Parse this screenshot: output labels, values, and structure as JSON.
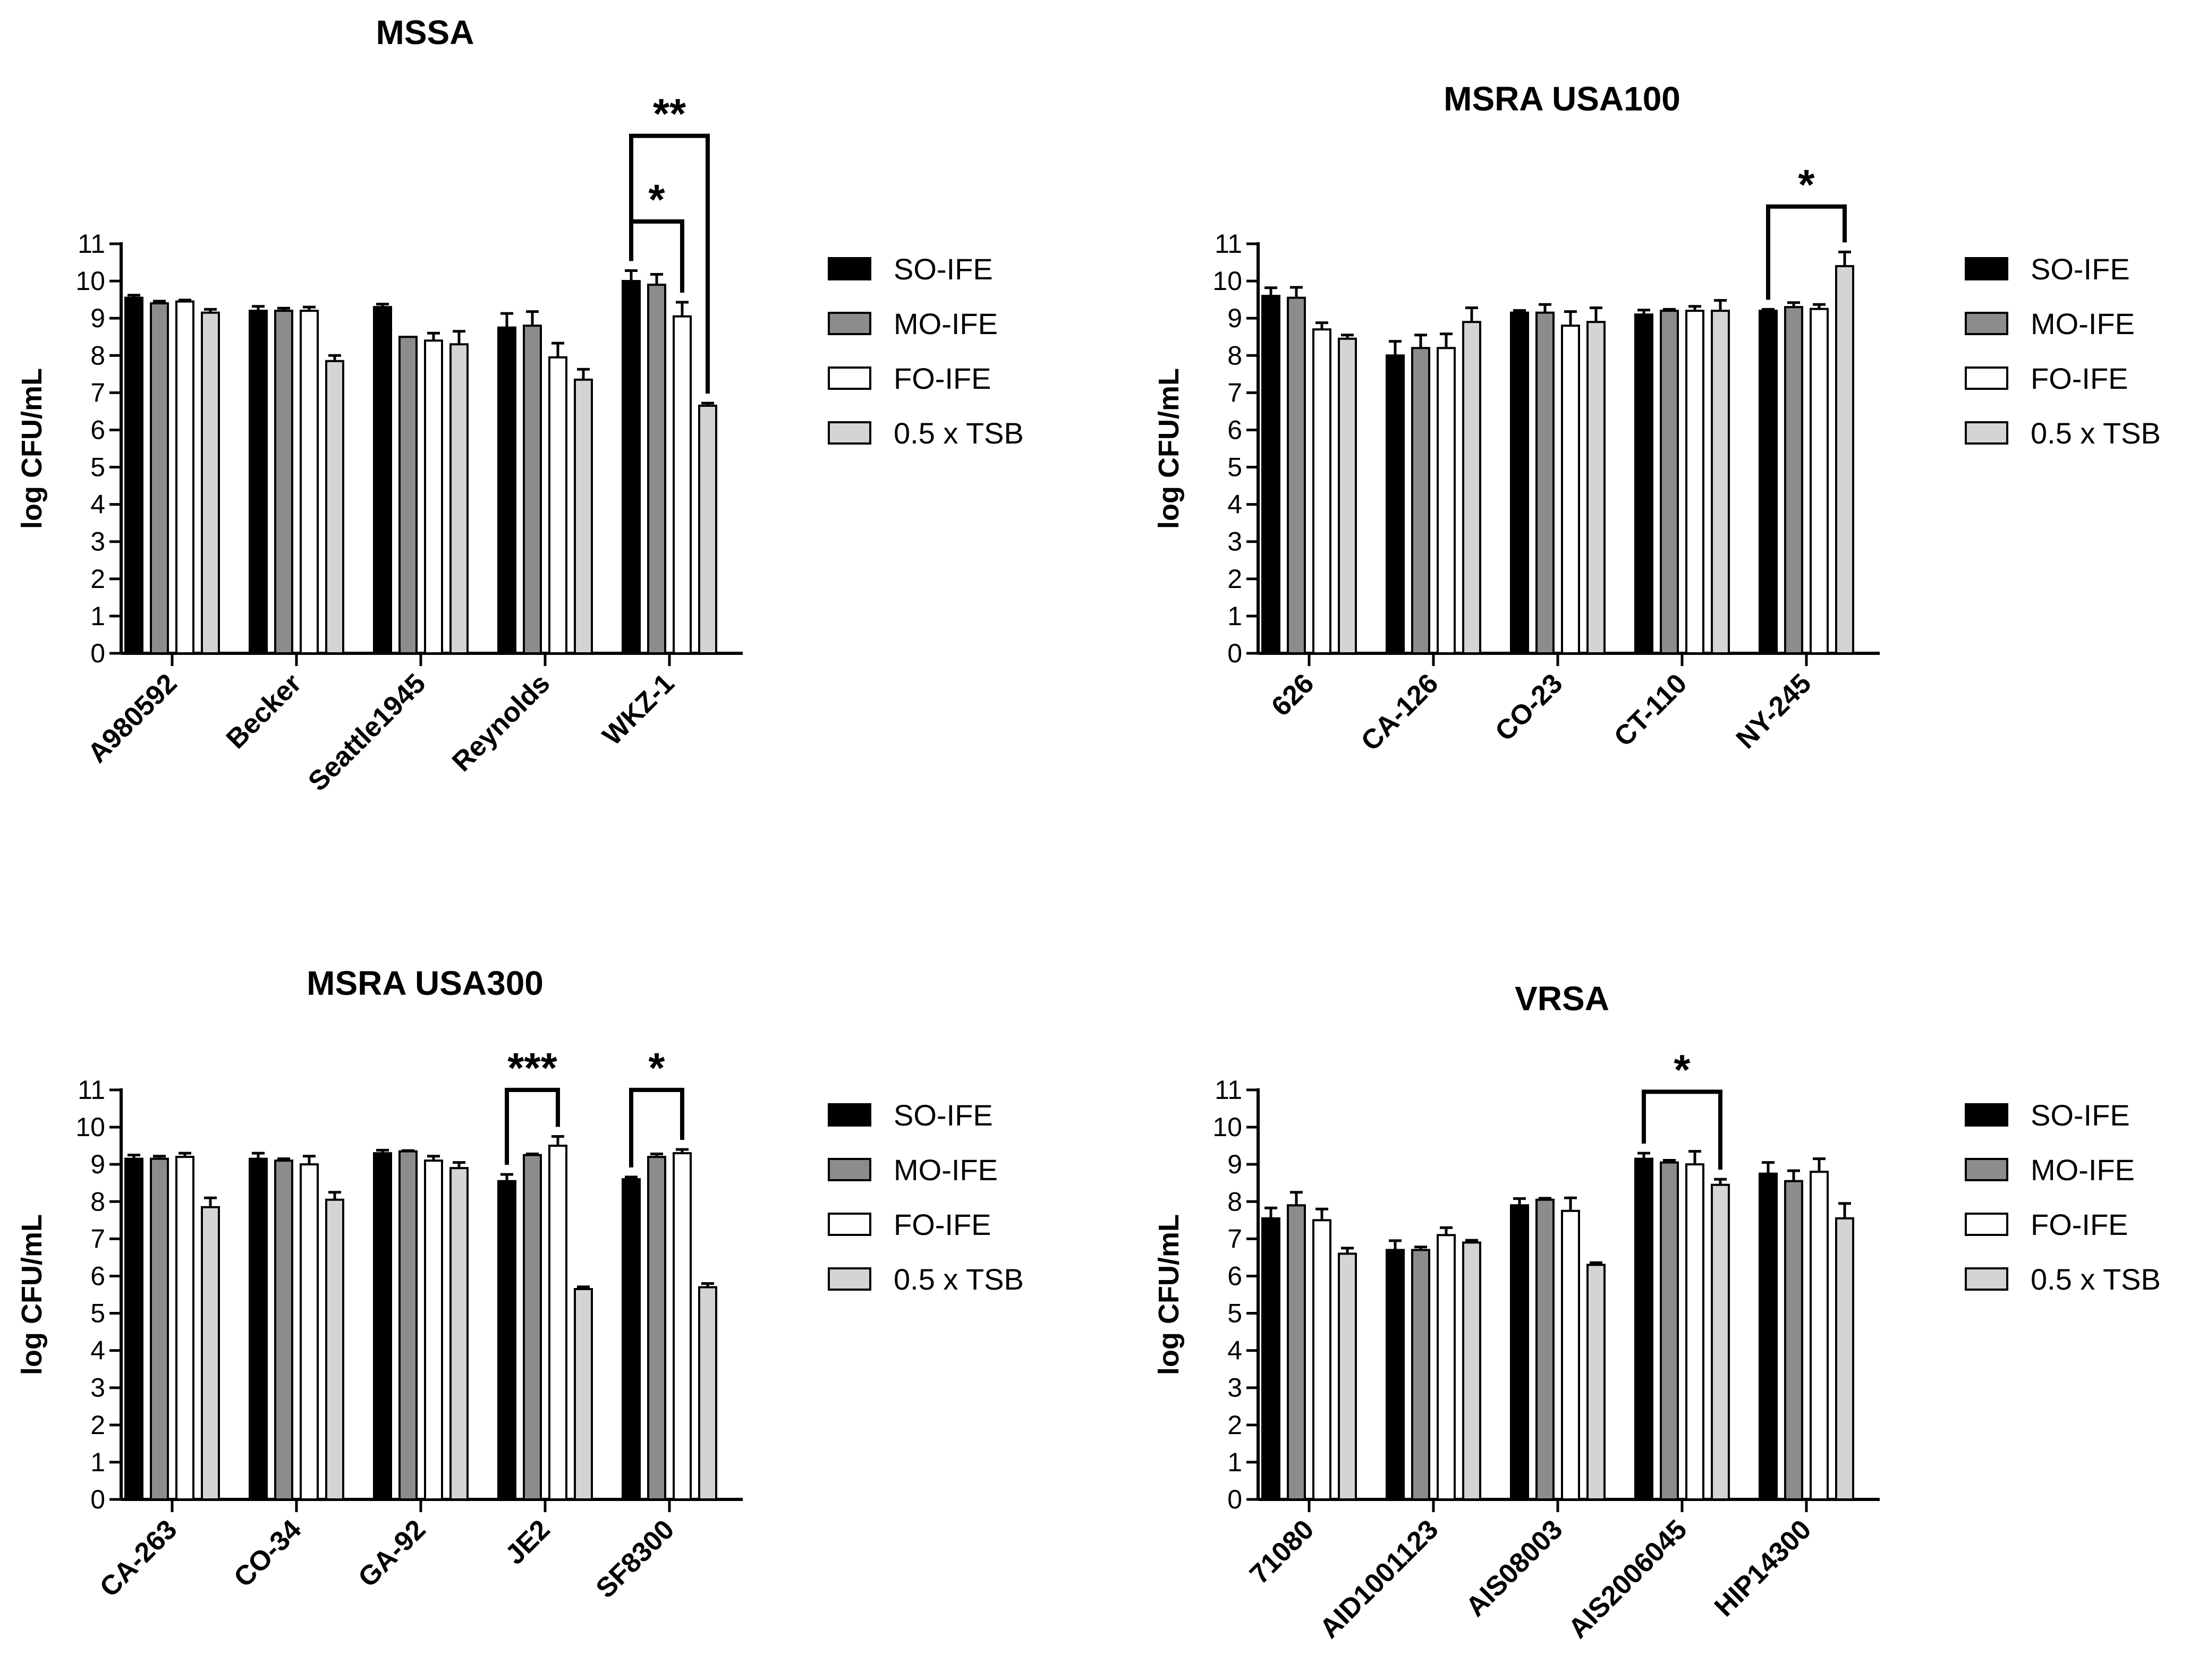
{
  "colors": {
    "SO-IFE": "#000000",
    "MO-IFE": "#8c8c8c",
    "FO-IFE": "#ffffff",
    "0.5 x TSB": "#d4d4d4"
  },
  "chart_data": [
    {
      "type": "bar",
      "title": "MSSA",
      "ylabel": "log CFU/mL",
      "xlabel": "",
      "ylim": [
        0,
        11
      ],
      "yticks": [
        0,
        1,
        2,
        3,
        4,
        5,
        6,
        7,
        8,
        9,
        10,
        11
      ],
      "legend": "right",
      "categories": [
        "A980592",
        "Becker",
        "Seattle1945",
        "Reynolds",
        "WKZ-1"
      ],
      "series": [
        {
          "name": "SO-IFE",
          "values": [
            9.55,
            9.2,
            9.3,
            8.75,
            10.0
          ],
          "errors": [
            0.07,
            0.12,
            0.08,
            0.38,
            0.28
          ]
        },
        {
          "name": "MO-IFE",
          "values": [
            9.4,
            9.2,
            8.5,
            8.8,
            9.9
          ],
          "errors": [
            0.06,
            0.07,
            0.0,
            0.38,
            0.28
          ]
        },
        {
          "name": "FO-IFE",
          "values": [
            9.45,
            9.2,
            8.4,
            7.95,
            9.05
          ],
          "errors": [
            0.04,
            0.1,
            0.2,
            0.38,
            0.38
          ]
        },
        {
          "name": "0.5 x TSB",
          "values": [
            9.15,
            7.85,
            8.3,
            7.35,
            6.65
          ],
          "errors": [
            0.09,
            0.15,
            0.35,
            0.28,
            0.07
          ]
        }
      ],
      "significance": [
        {
          "label": "*",
          "category": "WKZ-1",
          "from": "SO-IFE",
          "to": "FO-IFE",
          "level": 11.6
        },
        {
          "label": "**",
          "category": "WKZ-1",
          "from": "SO-IFE",
          "to": "0.5 x TSB",
          "level": 13.9
        }
      ]
    },
    {
      "type": "bar",
      "title": "MSRA USA100",
      "ylabel": "log CFU/mL",
      "xlabel": "",
      "ylim": [
        0,
        11
      ],
      "yticks": [
        0,
        1,
        2,
        3,
        4,
        5,
        6,
        7,
        8,
        9,
        10,
        11
      ],
      "legend": "right",
      "categories": [
        "626",
        "CA-126",
        "CO-23",
        "CT-110",
        "NY-245"
      ],
      "series": [
        {
          "name": "SO-IFE",
          "values": [
            9.6,
            8.0,
            9.15,
            9.1,
            9.2
          ],
          "errors": [
            0.22,
            0.38,
            0.06,
            0.12,
            0.04
          ]
        },
        {
          "name": "MO-IFE",
          "values": [
            9.55,
            8.2,
            9.15,
            9.2,
            9.3
          ],
          "errors": [
            0.28,
            0.35,
            0.22,
            0.04,
            0.12
          ]
        },
        {
          "name": "FO-IFE",
          "values": [
            8.7,
            8.2,
            8.8,
            9.2,
            9.25
          ],
          "errors": [
            0.18,
            0.38,
            0.38,
            0.12,
            0.12
          ]
        },
        {
          "name": "0.5 x TSB",
          "values": [
            8.45,
            8.9,
            8.9,
            9.2,
            10.4
          ],
          "errors": [
            0.1,
            0.38,
            0.38,
            0.28,
            0.38
          ]
        }
      ],
      "significance": [
        {
          "label": "*",
          "category": "NY-245",
          "from": "SO-IFE",
          "to": "0.5 x TSB",
          "level": 12.0
        }
      ]
    },
    {
      "type": "bar",
      "title": "MSRA USA300",
      "ylabel": "log CFU/mL",
      "xlabel": "",
      "ylim": [
        0,
        11
      ],
      "yticks": [
        0,
        1,
        2,
        3,
        4,
        5,
        6,
        7,
        8,
        9,
        10,
        11
      ],
      "legend": "right",
      "categories": [
        "CA-263",
        "CO-34",
        "GA-92",
        "JE2",
        "SF8300"
      ],
      "series": [
        {
          "name": "SO-IFE",
          "values": [
            9.15,
            9.15,
            9.3,
            8.55,
            8.6
          ],
          "errors": [
            0.1,
            0.15,
            0.08,
            0.18,
            0.06
          ]
        },
        {
          "name": "MO-IFE",
          "values": [
            9.15,
            9.1,
            9.35,
            9.25,
            9.2
          ],
          "errors": [
            0.07,
            0.05,
            0.02,
            0.03,
            0.08
          ]
        },
        {
          "name": "FO-IFE",
          "values": [
            9.2,
            9.0,
            9.1,
            9.5,
            9.3
          ],
          "errors": [
            0.1,
            0.22,
            0.12,
            0.25,
            0.1
          ]
        },
        {
          "name": "0.5 x TSB",
          "values": [
            7.85,
            8.05,
            8.9,
            5.65,
            5.7
          ],
          "errors": [
            0.25,
            0.2,
            0.15,
            0.06,
            0.1
          ]
        }
      ],
      "significance": [
        {
          "label": "***",
          "category": "JE2",
          "from": "SO-IFE",
          "to": "FO-IFE",
          "level": 11.0
        },
        {
          "label": "*",
          "category": "SF8300",
          "from": "SO-IFE",
          "to": "FO-IFE",
          "level": 11.0
        }
      ]
    },
    {
      "type": "bar",
      "title": "VRSA",
      "ylabel": "log CFU/mL",
      "xlabel": "",
      "ylim": [
        0,
        11
      ],
      "yticks": [
        0,
        1,
        2,
        3,
        4,
        5,
        6,
        7,
        8,
        9,
        10,
        11
      ],
      "legend": "right",
      "categories": [
        "71080",
        "AID1001123",
        "AIS08003",
        "AIS2006045",
        "HIP14300"
      ],
      "series": [
        {
          "name": "SO-IFE",
          "values": [
            7.55,
            6.7,
            7.9,
            9.15,
            8.75
          ],
          "errors": [
            0.28,
            0.25,
            0.18,
            0.15,
            0.3
          ]
        },
        {
          "name": "MO-IFE",
          "values": [
            7.9,
            6.7,
            8.05,
            9.05,
            8.55
          ],
          "errors": [
            0.35,
            0.08,
            0.04,
            0.06,
            0.28
          ]
        },
        {
          "name": "FO-IFE",
          "values": [
            7.5,
            7.1,
            7.75,
            9.0,
            8.8
          ],
          "errors": [
            0.3,
            0.2,
            0.35,
            0.35,
            0.35
          ]
        },
        {
          "name": "0.5 x TSB",
          "values": [
            6.6,
            6.9,
            6.3,
            8.45,
            7.55
          ],
          "errors": [
            0.15,
            0.06,
            0.06,
            0.15,
            0.4
          ]
        }
      ],
      "significance": [
        {
          "label": "*",
          "category": "AIS2006045",
          "from": "SO-IFE",
          "to": "0.5 x TSB",
          "level": 10.95
        }
      ]
    }
  ]
}
